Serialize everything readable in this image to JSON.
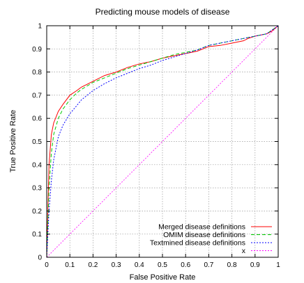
{
  "chart_data": {
    "type": "line",
    "title": "Predicting mouse models of disease",
    "xlabel": "False Positive Rate",
    "ylabel": "True Positive Rate",
    "xlim": [
      0,
      1
    ],
    "ylim": [
      0,
      1
    ],
    "xticks": [
      "0",
      "0.1",
      "0.2",
      "0.3",
      "0.4",
      "0.5",
      "0.6",
      "0.7",
      "0.8",
      "0.9",
      "1"
    ],
    "yticks": [
      "0",
      "0.1",
      "0.2",
      "0.3",
      "0.4",
      "0.5",
      "0.6",
      "0.7",
      "0.8",
      "0.9",
      "1"
    ],
    "grid": true,
    "legend_position": "bottom-right",
    "series": [
      {
        "name": "Merged disease definitions",
        "color": "#ff0000",
        "dash": "solid",
        "points": [
          [
            0,
            0
          ],
          [
            0.005,
            0.2
          ],
          [
            0.01,
            0.4
          ],
          [
            0.02,
            0.53
          ],
          [
            0.03,
            0.58
          ],
          [
            0.05,
            0.63
          ],
          [
            0.07,
            0.66
          ],
          [
            0.1,
            0.7
          ],
          [
            0.13,
            0.72
          ],
          [
            0.15,
            0.735
          ],
          [
            0.2,
            0.76
          ],
          [
            0.25,
            0.785
          ],
          [
            0.3,
            0.8
          ],
          [
            0.35,
            0.82
          ],
          [
            0.4,
            0.835
          ],
          [
            0.45,
            0.845
          ],
          [
            0.5,
            0.86
          ],
          [
            0.55,
            0.87
          ],
          [
            0.6,
            0.88
          ],
          [
            0.65,
            0.89
          ],
          [
            0.7,
            0.91
          ],
          [
            0.75,
            0.915
          ],
          [
            0.8,
            0.925
          ],
          [
            0.85,
            0.935
          ],
          [
            0.87,
            0.945
          ],
          [
            0.9,
            0.955
          ],
          [
            0.95,
            0.965
          ],
          [
            0.97,
            0.975
          ],
          [
            1,
            1
          ]
        ]
      },
      {
        "name": "OMIM disease definitions",
        "color": "#00cc00",
        "dash": "dashed",
        "points": [
          [
            0,
            0
          ],
          [
            0.005,
            0.15
          ],
          [
            0.01,
            0.3
          ],
          [
            0.02,
            0.45
          ],
          [
            0.03,
            0.53
          ],
          [
            0.05,
            0.6
          ],
          [
            0.07,
            0.64
          ],
          [
            0.1,
            0.68
          ],
          [
            0.13,
            0.71
          ],
          [
            0.15,
            0.725
          ],
          [
            0.2,
            0.755
          ],
          [
            0.25,
            0.775
          ],
          [
            0.3,
            0.795
          ],
          [
            0.35,
            0.815
          ],
          [
            0.4,
            0.83
          ],
          [
            0.45,
            0.845
          ],
          [
            0.5,
            0.86
          ],
          [
            0.55,
            0.875
          ],
          [
            0.6,
            0.885
          ],
          [
            0.65,
            0.895
          ],
          [
            0.7,
            0.915
          ],
          [
            0.75,
            0.925
          ],
          [
            0.8,
            0.935
          ],
          [
            0.85,
            0.945
          ],
          [
            0.9,
            0.955
          ],
          [
            0.95,
            0.965
          ],
          [
            1,
            1
          ]
        ]
      },
      {
        "name": "Textmined disease definitions",
        "color": "#0000ff",
        "dash": "dotted",
        "points": [
          [
            0,
            0
          ],
          [
            0.005,
            0.1
          ],
          [
            0.01,
            0.2
          ],
          [
            0.02,
            0.33
          ],
          [
            0.03,
            0.42
          ],
          [
            0.05,
            0.52
          ],
          [
            0.07,
            0.57
          ],
          [
            0.1,
            0.62
          ],
          [
            0.13,
            0.655
          ],
          [
            0.15,
            0.68
          ],
          [
            0.2,
            0.72
          ],
          [
            0.25,
            0.75
          ],
          [
            0.3,
            0.775
          ],
          [
            0.35,
            0.795
          ],
          [
            0.4,
            0.815
          ],
          [
            0.45,
            0.83
          ],
          [
            0.5,
            0.85
          ],
          [
            0.55,
            0.865
          ],
          [
            0.6,
            0.88
          ],
          [
            0.65,
            0.895
          ],
          [
            0.7,
            0.915
          ],
          [
            0.75,
            0.925
          ],
          [
            0.8,
            0.935
          ],
          [
            0.85,
            0.945
          ],
          [
            0.9,
            0.955
          ],
          [
            0.95,
            0.965
          ],
          [
            1,
            1
          ]
        ]
      },
      {
        "name": "x",
        "color": "#ff00ff",
        "dash": "dotted",
        "points": [
          [
            0,
            0
          ],
          [
            1,
            1
          ]
        ]
      }
    ]
  }
}
